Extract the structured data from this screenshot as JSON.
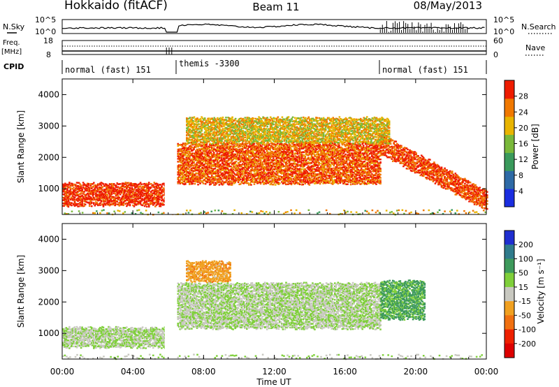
{
  "header": {
    "station": "Hokkaido (fitACF)",
    "beam": "Beam 11",
    "date": "08/May/2013"
  },
  "top_strip": {
    "left_labels": {
      "nsky": "N.Sky",
      "freq": "Freq.",
      "freq_unit": "[MHz]",
      "cpid": "CPID"
    },
    "right_labels": {
      "nsearch": "N.Search",
      "nave": "Nave"
    },
    "nsky_ticks": [
      "10^5",
      "10^0"
    ],
    "nsearch_ticks": [
      "10^5",
      "10^0"
    ],
    "freq_ticks": [
      "18",
      "8"
    ],
    "nave_ticks": [
      "60",
      "0"
    ],
    "cpid_segments": [
      {
        "label": "normal (fast) 151",
        "start_hour": 0,
        "end_hour": 6.3
      },
      {
        "label": "themis -3300",
        "start_hour": 6.3,
        "end_hour": 18.0
      },
      {
        "label": "normal (fast) 151",
        "start_hour": 18.0,
        "end_hour": 24
      }
    ]
  },
  "axes": {
    "ylabel": "Slant Range [km]",
    "xlabel": "Time UT",
    "y_ticks": [
      "1000",
      "2000",
      "3000",
      "4000"
    ],
    "x_ticks": [
      "00:00",
      "04:00",
      "08:00",
      "12:00",
      "16:00",
      "20:00",
      "00:00"
    ]
  },
  "power_colorbar": {
    "label": "Power [dB]",
    "ticks": [
      "4",
      "8",
      "12",
      "16",
      "20",
      "24",
      "28"
    ],
    "colors": [
      "#1a2de0",
      "#2e6aa6",
      "#3a9a5c",
      "#79b83a",
      "#e8b400",
      "#f07800",
      "#ee1c00"
    ]
  },
  "velocity_colorbar": {
    "label": "Velocity [m s⁻¹]",
    "ticks": [
      "200",
      "100",
      "50",
      "15",
      "-15",
      "-50",
      "-100",
      "-200"
    ],
    "colors": [
      "#1f2ed0",
      "#2f7b8c",
      "#3e9a5c",
      "#7fcf3a",
      "#c8c8c0",
      "#f0a020",
      "#f07010",
      "#ee2000",
      "#dd0000"
    ]
  },
  "chart_data": [
    {
      "type": "heatmap",
      "title": "",
      "xlabel": "Time UT",
      "ylabel": "Slant Range [km]",
      "xlim": [
        0,
        24
      ],
      "ylim": [
        180,
        4500
      ],
      "colorbar": "Power [dB]",
      "color_range": [
        0,
        30
      ],
      "features": [
        {
          "name": "near-range band",
          "t_start": 0,
          "t_end": 6.0,
          "range_low": 500,
          "range_high": 1200,
          "power_db": 26
        },
        {
          "name": "mid-range band",
          "t_start": 6.5,
          "t_end": 18.0,
          "range_low": 1200,
          "range_high": 2500,
          "power_db": 24
        },
        {
          "name": "descending band",
          "t_start": 18.0,
          "t_end": 24,
          "range_start": 2500,
          "range_end": 700,
          "power_db": 25
        },
        {
          "name": "upper band",
          "t_start": 7.0,
          "t_end": 18.5,
          "range_low": 2500,
          "range_high": 3300,
          "power_db": 18
        }
      ]
    },
    {
      "type": "heatmap",
      "title": "",
      "xlabel": "Time UT",
      "ylabel": "Slant Range [km]",
      "xlim": [
        0,
        24
      ],
      "ylim": [
        180,
        4500
      ],
      "colorbar": "Velocity [m s⁻¹]",
      "color_range": [
        -250,
        250
      ],
      "features": [
        {
          "name": "ground scatter near range",
          "t_start": 0,
          "t_end": 6.0,
          "range_low": 600,
          "range_high": 1200,
          "velocity": 0
        },
        {
          "name": "ground scatter mid range",
          "t_start": 6.5,
          "t_end": 18.0,
          "range_low": 1200,
          "range_high": 2600,
          "velocity": 0
        },
        {
          "name": "westward flow patch",
          "t_start": 7.0,
          "t_end": 9.5,
          "range_low": 2700,
          "range_high": 3300,
          "velocity": -50
        },
        {
          "name": "eastward flow patch",
          "t_start": 18.0,
          "t_end": 20.5,
          "range_low": 1500,
          "range_high": 2700,
          "velocity": 50
        }
      ]
    }
  ]
}
